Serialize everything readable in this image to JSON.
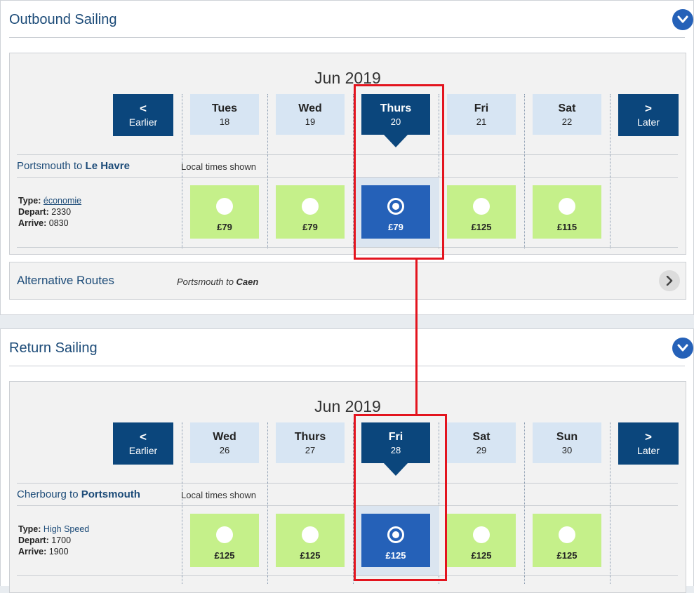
{
  "outbound": {
    "title": "Outbound Sailing",
    "month": "Jun 2019",
    "earlier": {
      "arrow": "<",
      "label": "Earlier"
    },
    "later": {
      "arrow": ">",
      "label": "Later"
    },
    "days": [
      {
        "name": "Tues",
        "num": "18"
      },
      {
        "name": "Wed",
        "num": "19"
      },
      {
        "name": "Thurs",
        "num": "20"
      },
      {
        "name": "Fri",
        "num": "21"
      },
      {
        "name": "Sat",
        "num": "22"
      }
    ],
    "selected_index": 2,
    "route_from": "Portsmouth to ",
    "route_to": "Le Havre",
    "local_times": "Local times shown",
    "type_label": "Type:",
    "type_value": "économie",
    "depart_label": "Depart:",
    "depart_value": "2330",
    "arrive_label": "Arrive:",
    "arrive_value": "0830",
    "fares": [
      "£79",
      "£79",
      "£79",
      "£125",
      "£115"
    ]
  },
  "alternative": {
    "title": "Alternative Routes",
    "route_from": "Portsmouth to ",
    "route_to": "Caen"
  },
  "return": {
    "title": "Return Sailing",
    "month": "Jun 2019",
    "earlier": {
      "arrow": "<",
      "label": "Earlier"
    },
    "later": {
      "arrow": ">",
      "label": "Later"
    },
    "days": [
      {
        "name": "Wed",
        "num": "26"
      },
      {
        "name": "Thurs",
        "num": "27"
      },
      {
        "name": "Fri",
        "num": "28"
      },
      {
        "name": "Sat",
        "num": "29"
      },
      {
        "name": "Sun",
        "num": "30"
      }
    ],
    "selected_index": 2,
    "route_from": "Cherbourg to ",
    "route_to": "Portsmouth",
    "local_times": "Local times shown",
    "type_label": "Type:",
    "type_value": "High Speed",
    "depart_label": "Depart:",
    "depart_value": "1700",
    "arrive_label": "Arrive:",
    "arrive_value": "1900",
    "fares": [
      "£125",
      "£125",
      "£125",
      "£125",
      "£125"
    ]
  },
  "icons": {
    "collapse": "chevron-down-icon",
    "alt_next": "chevron-right-icon"
  },
  "colors": {
    "navy": "#0b467c",
    "selected_blue": "#2561b8",
    "fare_green": "#c5f08a",
    "day_blue": "#d7e5f3",
    "highlight_red": "#e3141e"
  }
}
